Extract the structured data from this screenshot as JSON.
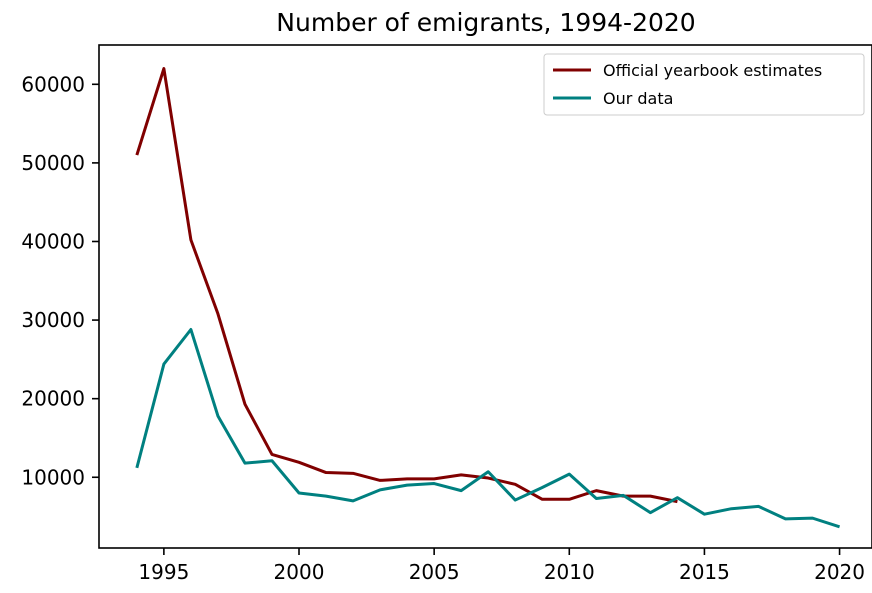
{
  "chart_data": {
    "type": "line",
    "title": "Number of emigrants, 1994-2020",
    "xlabel": "",
    "ylabel": "",
    "xlim": [
      1992.6,
      2021.2
    ],
    "ylim": [
      1000,
      65000
    ],
    "x_ticks": [
      1995,
      2000,
      2005,
      2010,
      2015,
      2020
    ],
    "y_ticks": [
      10000,
      20000,
      30000,
      40000,
      50000,
      60000
    ],
    "x_tick_labels": [
      "1995",
      "2000",
      "2005",
      "2010",
      "2015",
      "2020"
    ],
    "y_tick_labels": [
      "10000",
      "20000",
      "30000",
      "40000",
      "50000",
      "60000"
    ],
    "grid": false,
    "legend_position": "top-right",
    "series": [
      {
        "name": "Official yearbook estimates",
        "color": "#800000",
        "x": [
          1994,
          1995,
          1996,
          1997,
          1998,
          1999,
          2000,
          2001,
          2002,
          2003,
          2004,
          2005,
          2006,
          2007,
          2008,
          2009,
          2010,
          2011,
          2012,
          2013,
          2014
        ],
        "y": [
          51000,
          62000,
          40200,
          30800,
          19300,
          12900,
          11900,
          10600,
          10500,
          9600,
          9800,
          9800,
          10300,
          9900,
          9100,
          7200,
          7200,
          8300,
          7600,
          7600,
          6900
        ]
      },
      {
        "name": "Our data",
        "color": "#008080",
        "x": [
          1994,
          1995,
          1996,
          1997,
          1998,
          1999,
          2000,
          2001,
          2002,
          2003,
          2004,
          2005,
          2006,
          2007,
          2008,
          2009,
          2010,
          2011,
          2012,
          2013,
          2014,
          2015,
          2016,
          2017,
          2018,
          2019,
          2020
        ],
        "y": [
          11200,
          24400,
          28800,
          17800,
          11800,
          12100,
          8000,
          7600,
          7000,
          8400,
          9000,
          9200,
          8300,
          10700,
          7100,
          8700,
          10400,
          7300,
          7700,
          5500,
          7400,
          5300,
          6000,
          6300,
          4700,
          4800,
          3700
        ]
      }
    ]
  }
}
